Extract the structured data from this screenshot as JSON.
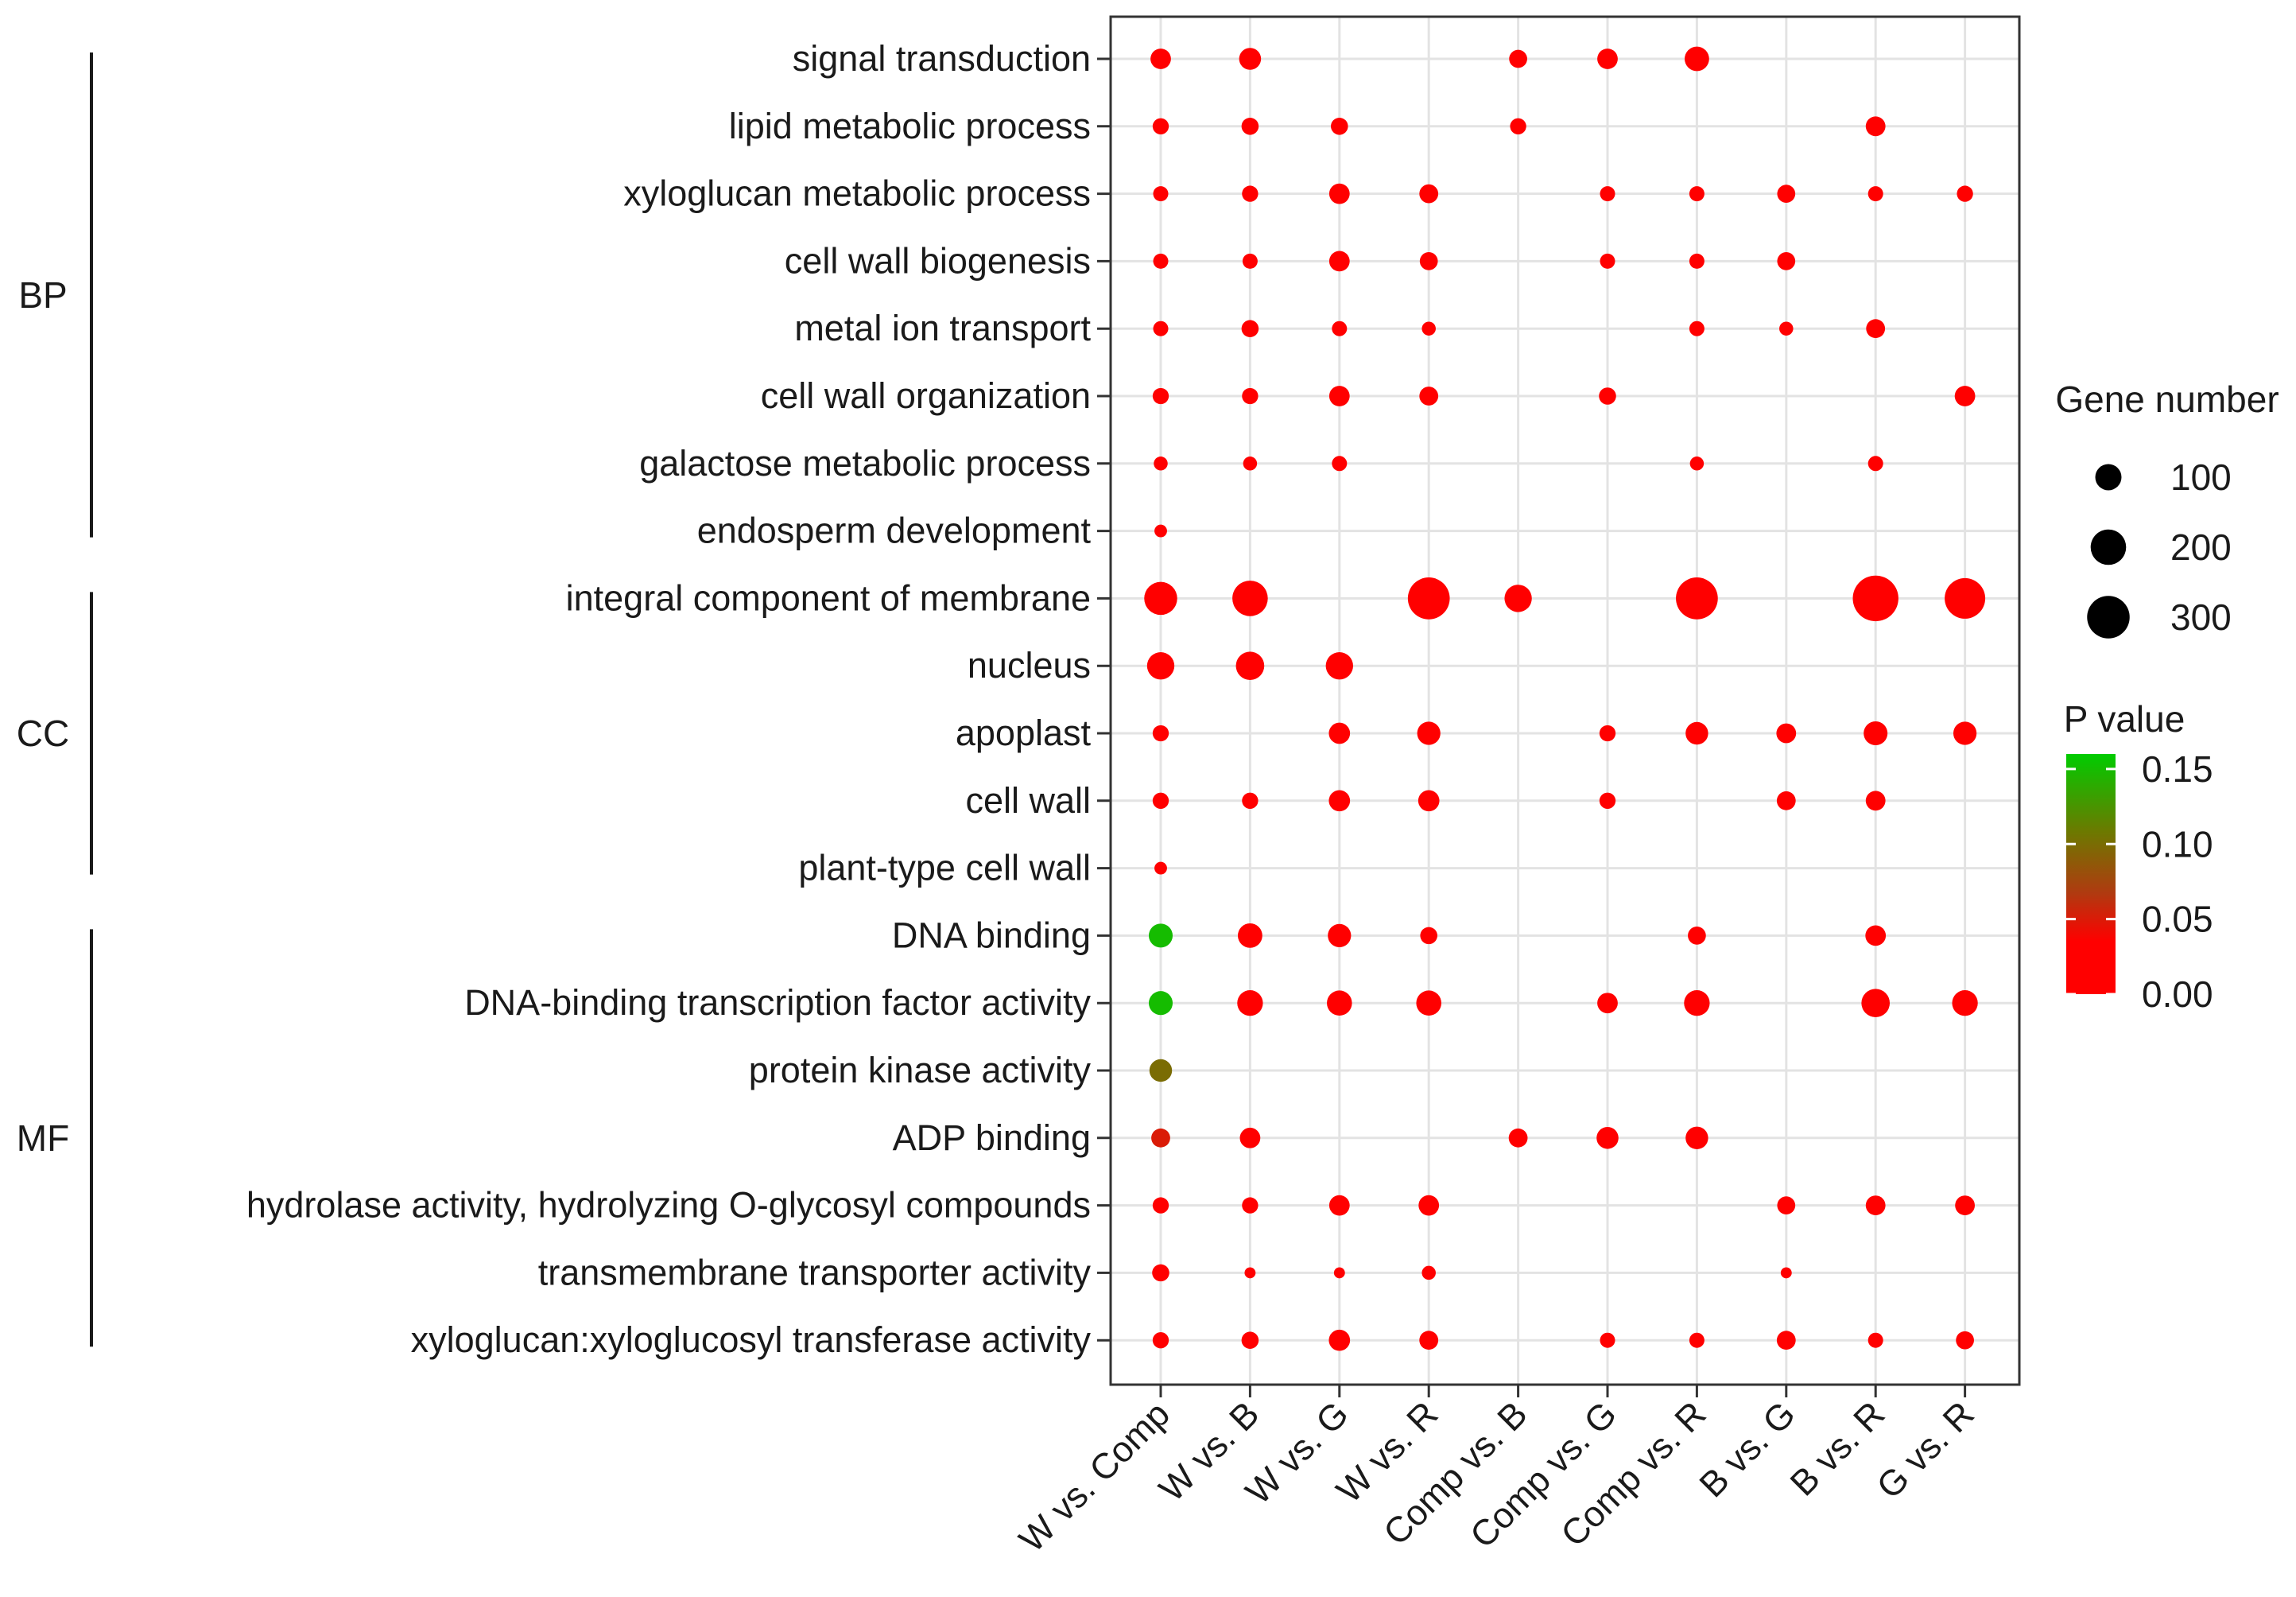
{
  "chart_data": {
    "type": "bubble",
    "rows": [
      "signal transduction",
      "lipid metabolic process",
      "xyloglucan metabolic process",
      "cell wall biogenesis",
      "metal ion transport",
      "cell wall organization",
      "galactose metabolic process",
      "endosperm development",
      "integral component of membrane",
      "nucleus",
      "apoplast",
      "cell wall",
      "plant-type cell wall",
      "DNA binding",
      "DNA-binding transcription factor activity",
      "protein kinase activity",
      "ADP binding",
      "hydrolase activity, hydrolyzing O-glycosyl compounds",
      "transmembrane transporter activity",
      "xyloglucan:xyloglucosyl transferase activity"
    ],
    "columns": [
      "W vs. Comp",
      "W vs. B",
      "W vs. G",
      "W vs. R",
      "Comp vs. B",
      "Comp vs. G",
      "Comp vs. R",
      "B vs. G",
      "B vs. R",
      "G vs. R"
    ],
    "groups": [
      {
        "name": "BP",
        "rows": [
          0,
          7
        ]
      },
      {
        "name": "CC",
        "rows": [
          8,
          12
        ]
      },
      {
        "name": "MF",
        "rows": [
          13,
          19
        ]
      }
    ],
    "points": [
      {
        "row": 0,
        "col": 0,
        "genes": 55,
        "p": 0.0
      },
      {
        "row": 0,
        "col": 1,
        "genes": 65,
        "p": 0.0
      },
      {
        "row": 0,
        "col": 4,
        "genes": 40,
        "p": 0.0
      },
      {
        "row": 0,
        "col": 5,
        "genes": 55,
        "p": 0.0
      },
      {
        "row": 0,
        "col": 6,
        "genes": 85,
        "p": 0.0
      },
      {
        "row": 1,
        "col": 0,
        "genes": 30,
        "p": 0.0
      },
      {
        "row": 1,
        "col": 1,
        "genes": 35,
        "p": 0.0
      },
      {
        "row": 1,
        "col": 2,
        "genes": 35,
        "p": 0.0
      },
      {
        "row": 1,
        "col": 4,
        "genes": 30,
        "p": 0.0
      },
      {
        "row": 1,
        "col": 8,
        "genes": 50,
        "p": 0.0
      },
      {
        "row": 2,
        "col": 0,
        "genes": 25,
        "p": 0.0
      },
      {
        "row": 2,
        "col": 1,
        "genes": 30,
        "p": 0.0
      },
      {
        "row": 2,
        "col": 2,
        "genes": 55,
        "p": 0.0
      },
      {
        "row": 2,
        "col": 3,
        "genes": 45,
        "p": 0.0
      },
      {
        "row": 2,
        "col": 5,
        "genes": 25,
        "p": 0.0
      },
      {
        "row": 2,
        "col": 6,
        "genes": 25,
        "p": 0.0
      },
      {
        "row": 2,
        "col": 7,
        "genes": 40,
        "p": 0.0
      },
      {
        "row": 2,
        "col": 8,
        "genes": 25,
        "p": 0.0
      },
      {
        "row": 2,
        "col": 9,
        "genes": 30,
        "p": 0.0
      },
      {
        "row": 3,
        "col": 0,
        "genes": 25,
        "p": 0.0
      },
      {
        "row": 3,
        "col": 1,
        "genes": 25,
        "p": 0.0
      },
      {
        "row": 3,
        "col": 2,
        "genes": 55,
        "p": 0.0
      },
      {
        "row": 3,
        "col": 3,
        "genes": 40,
        "p": 0.0
      },
      {
        "row": 3,
        "col": 5,
        "genes": 25,
        "p": 0.0
      },
      {
        "row": 3,
        "col": 6,
        "genes": 25,
        "p": 0.0
      },
      {
        "row": 3,
        "col": 7,
        "genes": 40,
        "p": 0.0
      },
      {
        "row": 4,
        "col": 0,
        "genes": 25,
        "p": 0.0
      },
      {
        "row": 4,
        "col": 1,
        "genes": 35,
        "p": 0.0
      },
      {
        "row": 4,
        "col": 2,
        "genes": 25,
        "p": 0.0
      },
      {
        "row": 4,
        "col": 3,
        "genes": 20,
        "p": 0.0
      },
      {
        "row": 4,
        "col": 6,
        "genes": 25,
        "p": 0.0
      },
      {
        "row": 4,
        "col": 7,
        "genes": 20,
        "p": 0.0
      },
      {
        "row": 4,
        "col": 8,
        "genes": 45,
        "p": 0.0
      },
      {
        "row": 5,
        "col": 0,
        "genes": 30,
        "p": 0.0
      },
      {
        "row": 5,
        "col": 1,
        "genes": 30,
        "p": 0.0
      },
      {
        "row": 5,
        "col": 2,
        "genes": 55,
        "p": 0.0
      },
      {
        "row": 5,
        "col": 3,
        "genes": 45,
        "p": 0.0
      },
      {
        "row": 5,
        "col": 5,
        "genes": 35,
        "p": 0.0
      },
      {
        "row": 5,
        "col": 9,
        "genes": 55,
        "p": 0.0
      },
      {
        "row": 6,
        "col": 0,
        "genes": 20,
        "p": 0.0
      },
      {
        "row": 6,
        "col": 1,
        "genes": 20,
        "p": 0.0
      },
      {
        "row": 6,
        "col": 2,
        "genes": 25,
        "p": 0.0
      },
      {
        "row": 6,
        "col": 6,
        "genes": 20,
        "p": 0.0
      },
      {
        "row": 6,
        "col": 8,
        "genes": 25,
        "p": 0.0
      },
      {
        "row": 7,
        "col": 0,
        "genes": 15,
        "p": 0.0
      },
      {
        "row": 8,
        "col": 0,
        "genes": 170,
        "p": 0.0
      },
      {
        "row": 8,
        "col": 1,
        "genes": 200,
        "p": 0.0
      },
      {
        "row": 8,
        "col": 3,
        "genes": 290,
        "p": 0.0
      },
      {
        "row": 8,
        "col": 4,
        "genes": 110,
        "p": 0.0
      },
      {
        "row": 8,
        "col": 6,
        "genes": 290,
        "p": 0.0
      },
      {
        "row": 8,
        "col": 8,
        "genes": 350,
        "p": 0.0
      },
      {
        "row": 8,
        "col": 9,
        "genes": 270,
        "p": 0.0
      },
      {
        "row": 9,
        "col": 0,
        "genes": 110,
        "p": 0.0
      },
      {
        "row": 9,
        "col": 1,
        "genes": 120,
        "p": 0.0
      },
      {
        "row": 9,
        "col": 2,
        "genes": 110,
        "p": 0.0
      },
      {
        "row": 10,
        "col": 0,
        "genes": 30,
        "p": 0.0
      },
      {
        "row": 10,
        "col": 2,
        "genes": 60,
        "p": 0.0
      },
      {
        "row": 10,
        "col": 3,
        "genes": 75,
        "p": 0.0
      },
      {
        "row": 10,
        "col": 5,
        "genes": 30,
        "p": 0.0
      },
      {
        "row": 10,
        "col": 6,
        "genes": 70,
        "p": 0.0
      },
      {
        "row": 10,
        "col": 7,
        "genes": 50,
        "p": 0.0
      },
      {
        "row": 10,
        "col": 8,
        "genes": 80,
        "p": 0.0
      },
      {
        "row": 10,
        "col": 9,
        "genes": 75,
        "p": 0.0
      },
      {
        "row": 11,
        "col": 0,
        "genes": 30,
        "p": 0.0
      },
      {
        "row": 11,
        "col": 1,
        "genes": 30,
        "p": 0.0
      },
      {
        "row": 11,
        "col": 2,
        "genes": 60,
        "p": 0.0
      },
      {
        "row": 11,
        "col": 3,
        "genes": 60,
        "p": 0.0
      },
      {
        "row": 11,
        "col": 5,
        "genes": 30,
        "p": 0.0
      },
      {
        "row": 11,
        "col": 7,
        "genes": 45,
        "p": 0.0
      },
      {
        "row": 11,
        "col": 8,
        "genes": 50,
        "p": 0.0
      },
      {
        "row": 12,
        "col": 0,
        "genes": 15,
        "p": 0.0
      },
      {
        "row": 13,
        "col": 0,
        "genes": 80,
        "p": 0.15
      },
      {
        "row": 13,
        "col": 1,
        "genes": 85,
        "p": 0.0
      },
      {
        "row": 13,
        "col": 2,
        "genes": 75,
        "p": 0.0
      },
      {
        "row": 13,
        "col": 3,
        "genes": 35,
        "p": 0.0
      },
      {
        "row": 13,
        "col": 6,
        "genes": 40,
        "p": 0.0
      },
      {
        "row": 13,
        "col": 8,
        "genes": 55,
        "p": 0.0
      },
      {
        "row": 14,
        "col": 0,
        "genes": 80,
        "p": 0.15
      },
      {
        "row": 14,
        "col": 1,
        "genes": 95,
        "p": 0.0
      },
      {
        "row": 14,
        "col": 2,
        "genes": 90,
        "p": 0.0
      },
      {
        "row": 14,
        "col": 3,
        "genes": 90,
        "p": 0.0
      },
      {
        "row": 14,
        "col": 5,
        "genes": 55,
        "p": 0.0
      },
      {
        "row": 14,
        "col": 6,
        "genes": 95,
        "p": 0.0
      },
      {
        "row": 14,
        "col": 8,
        "genes": 120,
        "p": 0.0
      },
      {
        "row": 14,
        "col": 9,
        "genes": 95,
        "p": 0.0
      },
      {
        "row": 15,
        "col": 0,
        "genes": 70,
        "p": 0.1
      },
      {
        "row": 16,
        "col": 0,
        "genes": 45,
        "p": 0.05
      },
      {
        "row": 16,
        "col": 1,
        "genes": 55,
        "p": 0.0
      },
      {
        "row": 16,
        "col": 4,
        "genes": 45,
        "p": 0.0
      },
      {
        "row": 16,
        "col": 5,
        "genes": 65,
        "p": 0.0
      },
      {
        "row": 16,
        "col": 6,
        "genes": 70,
        "p": 0.0
      },
      {
        "row": 17,
        "col": 0,
        "genes": 30,
        "p": 0.0
      },
      {
        "row": 17,
        "col": 1,
        "genes": 30,
        "p": 0.0
      },
      {
        "row": 17,
        "col": 2,
        "genes": 55,
        "p": 0.0
      },
      {
        "row": 17,
        "col": 3,
        "genes": 55,
        "p": 0.0
      },
      {
        "row": 17,
        "col": 7,
        "genes": 40,
        "p": 0.0
      },
      {
        "row": 17,
        "col": 8,
        "genes": 50,
        "p": 0.0
      },
      {
        "row": 17,
        "col": 9,
        "genes": 50,
        "p": 0.0
      },
      {
        "row": 18,
        "col": 0,
        "genes": 35,
        "p": 0.0
      },
      {
        "row": 18,
        "col": 1,
        "genes": 10,
        "p": 0.0
      },
      {
        "row": 18,
        "col": 2,
        "genes": 10,
        "p": 0.0
      },
      {
        "row": 18,
        "col": 3,
        "genes": 20,
        "p": 0.0
      },
      {
        "row": 18,
        "col": 7,
        "genes": 10,
        "p": 0.0
      },
      {
        "row": 19,
        "col": 0,
        "genes": 30,
        "p": 0.0
      },
      {
        "row": 19,
        "col": 1,
        "genes": 35,
        "p": 0.0
      },
      {
        "row": 19,
        "col": 2,
        "genes": 60,
        "p": 0.0
      },
      {
        "row": 19,
        "col": 3,
        "genes": 45,
        "p": 0.0
      },
      {
        "row": 19,
        "col": 5,
        "genes": 25,
        "p": 0.0
      },
      {
        "row": 19,
        "col": 6,
        "genes": 25,
        "p": 0.0
      },
      {
        "row": 19,
        "col": 7,
        "genes": 45,
        "p": 0.0
      },
      {
        "row": 19,
        "col": 8,
        "genes": 25,
        "p": 0.0
      },
      {
        "row": 19,
        "col": 9,
        "genes": 40,
        "p": 0.0
      }
    ],
    "size_legend": {
      "title": "Gene number",
      "values": [
        100,
        200,
        300
      ],
      "labels": [
        "100",
        "200",
        "300"
      ]
    },
    "color_legend": {
      "title": "P value",
      "range": [
        0.0,
        0.16
      ],
      "ticks": [
        0.15,
        0.1,
        0.05,
        0.0
      ],
      "tick_labels": [
        "0.15",
        "0.10",
        "0.05",
        "0.00"
      ],
      "color_low": "#ff0000",
      "color_high": "#00cc00"
    }
  }
}
